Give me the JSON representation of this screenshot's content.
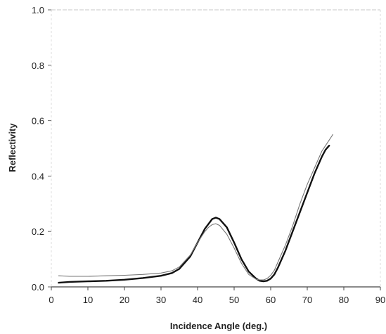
{
  "chart_data": {
    "type": "line",
    "title": "",
    "xlabel": "Incidence Angle (deg.)",
    "ylabel": "Reflectivity",
    "xlim": [
      0,
      90
    ],
    "ylim": [
      0,
      1.0
    ],
    "xticks": [
      0,
      10,
      20,
      30,
      40,
      50,
      60,
      70,
      80,
      90
    ],
    "xtick_labels": [
      "0",
      "10",
      "20",
      "30",
      "40",
      "50",
      "60",
      "70",
      "80",
      "90"
    ],
    "yticks": [
      0,
      0.2,
      0.4,
      0.6,
      0.8,
      1.0
    ],
    "ytick_labels": [
      "0.0",
      "0.2",
      "0.4",
      "0.6",
      "0.8",
      "1.0"
    ],
    "grid": false,
    "legend": "none",
    "series": [
      {
        "style": "thick-dark",
        "color": "#111111",
        "x": [
          2,
          5,
          10,
          15,
          20,
          25,
          30,
          33,
          35,
          38,
          40,
          42,
          44,
          45,
          46,
          48,
          50,
          52,
          54,
          56,
          57,
          58,
          59,
          60,
          61,
          62,
          64,
          66,
          68,
          70,
          72,
          74,
          75,
          76
        ],
        "y": [
          0.015,
          0.018,
          0.02,
          0.022,
          0.026,
          0.032,
          0.04,
          0.05,
          0.065,
          0.11,
          0.16,
          0.21,
          0.245,
          0.25,
          0.245,
          0.215,
          0.16,
          0.1,
          0.055,
          0.03,
          0.022,
          0.02,
          0.022,
          0.03,
          0.045,
          0.07,
          0.13,
          0.2,
          0.27,
          0.34,
          0.41,
          0.47,
          0.495,
          0.51
        ]
      },
      {
        "style": "thin-light",
        "color": "#777777",
        "x": [
          2,
          5,
          10,
          15,
          20,
          25,
          30,
          33,
          35,
          38,
          40,
          42,
          43,
          44,
          45,
          46,
          48,
          50,
          52,
          54,
          56,
          57,
          58,
          59,
          60,
          61,
          62,
          64,
          66,
          68,
          70,
          72,
          74,
          76,
          77
        ],
        "y": [
          0.04,
          0.038,
          0.038,
          0.04,
          0.042,
          0.045,
          0.05,
          0.058,
          0.072,
          0.115,
          0.16,
          0.2,
          0.215,
          0.225,
          0.228,
          0.222,
          0.19,
          0.14,
          0.085,
          0.045,
          0.028,
          0.025,
          0.025,
          0.03,
          0.042,
          0.06,
          0.09,
          0.15,
          0.22,
          0.3,
          0.37,
          0.43,
          0.49,
          0.53,
          0.55
        ]
      }
    ]
  }
}
